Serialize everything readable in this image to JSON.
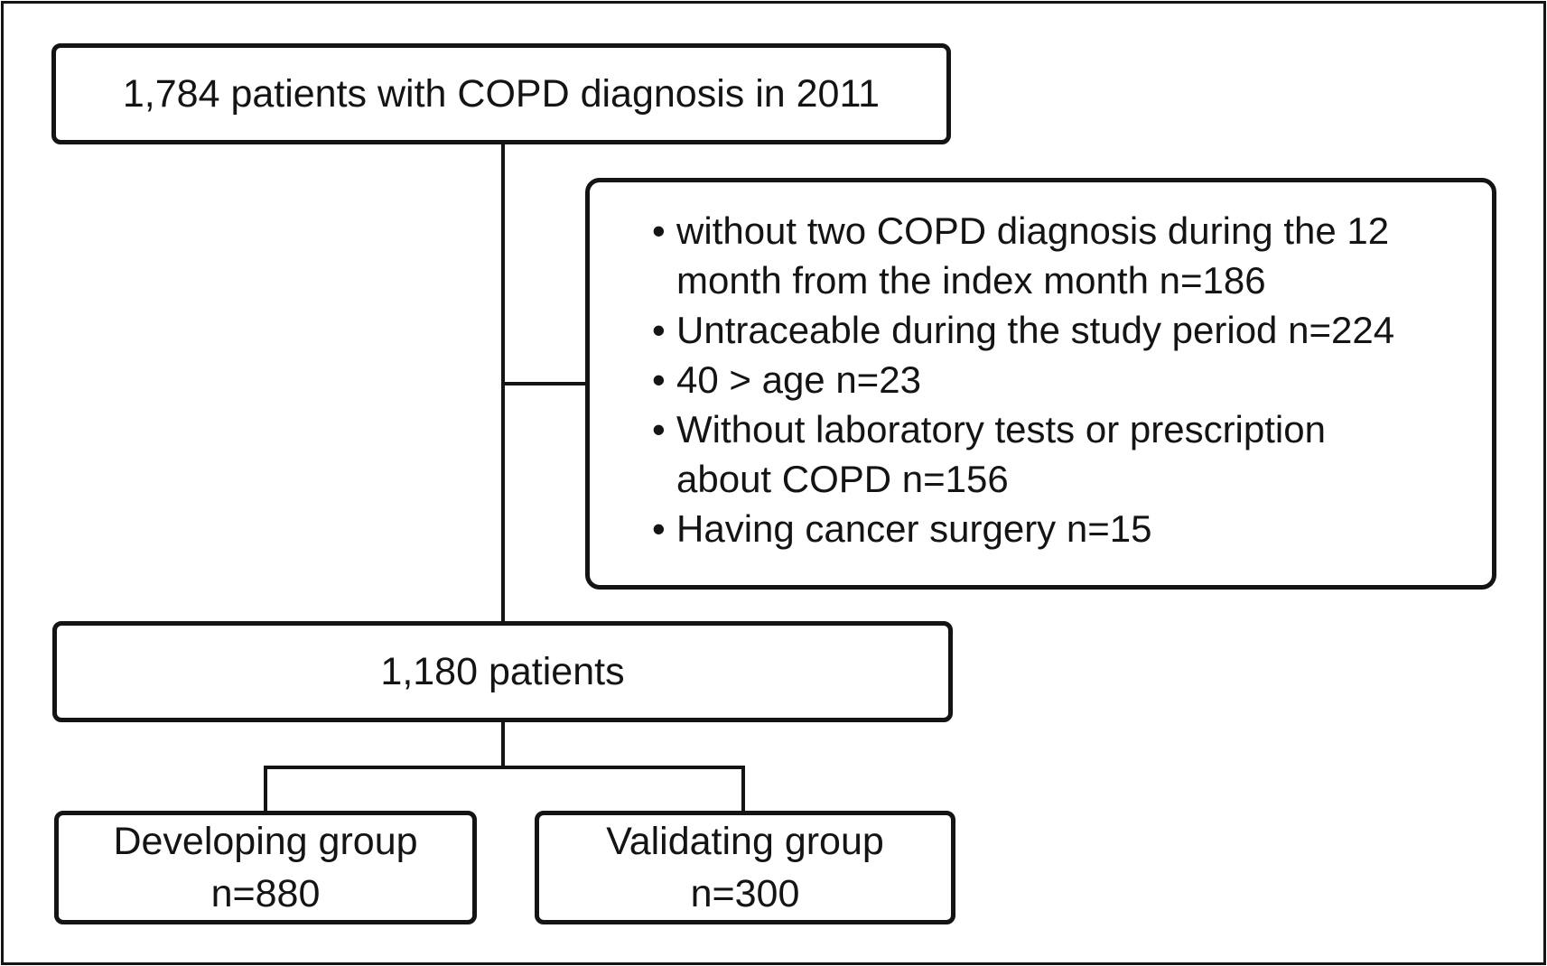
{
  "diagram": {
    "type": "study-flowchart",
    "bullet_char": "•",
    "colors": {
      "background": "#ffffff",
      "line": "#141414",
      "text": "#141414"
    },
    "boxes": {
      "initial": {
        "label": "1,784 patients with COPD diagnosis in 2011"
      },
      "exclusion": {
        "items": [
          {
            "lines": [
              "without two COPD diagnosis during the 12",
              "month from the index month n=186"
            ]
          },
          {
            "lines": [
              "Untraceable during the study period n=224"
            ]
          },
          {
            "lines": [
              "40 > age n=23"
            ]
          },
          {
            "lines": [
              "Without laboratory tests or prescription",
              "about COPD n=156"
            ]
          },
          {
            "lines": [
              "Having cancer surgery n=15"
            ]
          }
        ]
      },
      "included": {
        "label": "1,180 patients"
      },
      "developing": {
        "name": "Developing group",
        "count": "n=880"
      },
      "validating": {
        "name": "Validating group",
        "count": "n=300"
      }
    }
  }
}
